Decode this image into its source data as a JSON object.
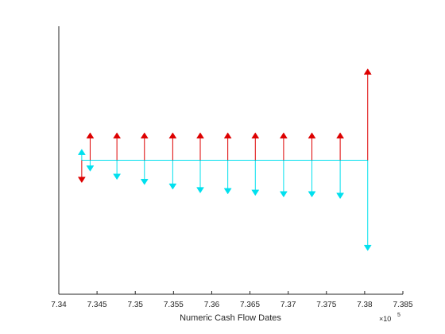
{
  "chart_data": {
    "type": "stem",
    "title": "",
    "xlabel": "Numeric Cash Flow Dates",
    "ylabel": "",
    "x_multiplier_label": "×10",
    "x_multiplier_exponent": "5",
    "xlim": [
      7.34,
      7.385
    ],
    "ylim": [
      -1.3,
      1.3
    ],
    "x_ticks": [
      7.34,
      7.345,
      7.35,
      7.355,
      7.36,
      7.365,
      7.37,
      7.375,
      7.38,
      7.385
    ],
    "x_tick_labels": [
      "7.34",
      "7.345",
      "7.35",
      "7.355",
      "7.36",
      "7.365",
      "7.37",
      "7.375",
      "7.38",
      "7.385"
    ],
    "grid": false,
    "baseline": 0,
    "series": [
      {
        "color": "#dd0000",
        "marker": "triangle",
        "points": [
          {
            "x": 7.343,
            "y": -0.19
          },
          {
            "x": 7.3441,
            "y": 0.24
          },
          {
            "x": 7.3476,
            "y": 0.24
          },
          {
            "x": 7.3512,
            "y": 0.24
          },
          {
            "x": 7.3549,
            "y": 0.24
          },
          {
            "x": 7.3585,
            "y": 0.24
          },
          {
            "x": 7.3621,
            "y": 0.24
          },
          {
            "x": 7.3657,
            "y": 0.24
          },
          {
            "x": 7.3694,
            "y": 0.24
          },
          {
            "x": 7.3731,
            "y": 0.24
          },
          {
            "x": 7.3768,
            "y": 0.24
          },
          {
            "x": 7.3804,
            "y": 0.86
          }
        ]
      },
      {
        "color": "#00e0ee",
        "marker": "triangle",
        "points": [
          {
            "x": 7.343,
            "y": 0.08
          },
          {
            "x": 7.3441,
            "y": -0.08
          },
          {
            "x": 7.3476,
            "y": -0.16
          },
          {
            "x": 7.3512,
            "y": -0.21
          },
          {
            "x": 7.3549,
            "y": -0.255
          },
          {
            "x": 7.3585,
            "y": -0.29
          },
          {
            "x": 7.3621,
            "y": -0.3
          },
          {
            "x": 7.3657,
            "y": -0.315
          },
          {
            "x": 7.3694,
            "y": -0.33
          },
          {
            "x": 7.3731,
            "y": -0.33
          },
          {
            "x": 7.3768,
            "y": -0.345
          },
          {
            "x": 7.3804,
            "y": -0.85
          }
        ]
      }
    ]
  }
}
